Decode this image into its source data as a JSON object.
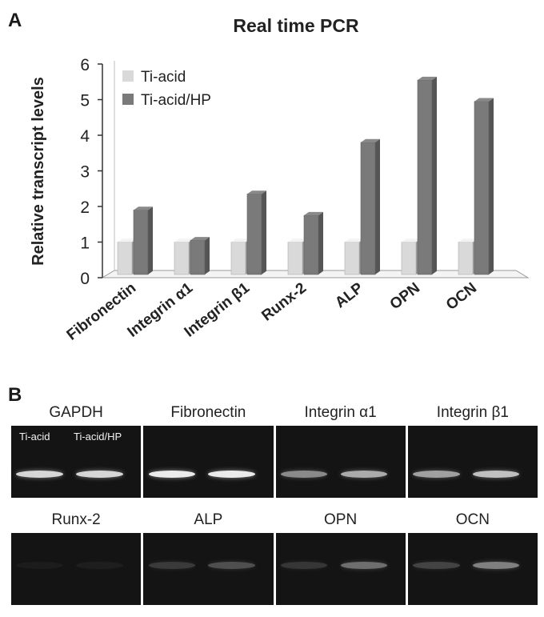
{
  "panel_a": {
    "letter": "A"
  },
  "panel_b": {
    "letter": "B"
  },
  "chart_data": {
    "type": "bar",
    "title": "Real time PCR",
    "xlabel": "",
    "ylabel": "Relative transcript levels",
    "ylim": [
      0,
      6
    ],
    "yticks": [
      "0",
      "1",
      "2",
      "3",
      "4",
      "5",
      "6"
    ],
    "categories": [
      "Fibronectin",
      "Integrin α1",
      "Integrin β1",
      "Runx-2",
      "ALP",
      "OPN",
      "OCN"
    ],
    "series": [
      {
        "name": "Ti-acid",
        "color": "#d9d9d9",
        "values": [
          1,
          1,
          1,
          1,
          1,
          1,
          1
        ]
      },
      {
        "name": "Ti-acid/HP",
        "color": "#7a7a7a",
        "values": [
          1.9,
          1.05,
          2.35,
          1.75,
          3.8,
          5.55,
          4.95
        ]
      }
    ],
    "legend": "top-left",
    "grid": false
  },
  "gel": {
    "lane_labels": [
      "Ti-acid",
      "Ti-acid/HP"
    ],
    "rows": [
      [
        {
          "name": "GAPDH",
          "bands": [
            0.9,
            0.9
          ]
        },
        {
          "name": "Fibronectin",
          "bands": [
            1.0,
            1.0
          ]
        },
        {
          "name": "Integrin α1",
          "bands": [
            0.55,
            0.7
          ]
        },
        {
          "name": "Integrin β1",
          "bands": [
            0.65,
            0.8
          ]
        }
      ],
      [
        {
          "name": "Runx-2",
          "bands": [
            0.04,
            0.05
          ]
        },
        {
          "name": "ALP",
          "bands": [
            0.18,
            0.28
          ]
        },
        {
          "name": "OPN",
          "bands": [
            0.16,
            0.42
          ]
        },
        {
          "name": "OCN",
          "bands": [
            0.22,
            0.5
          ]
        }
      ]
    ]
  }
}
